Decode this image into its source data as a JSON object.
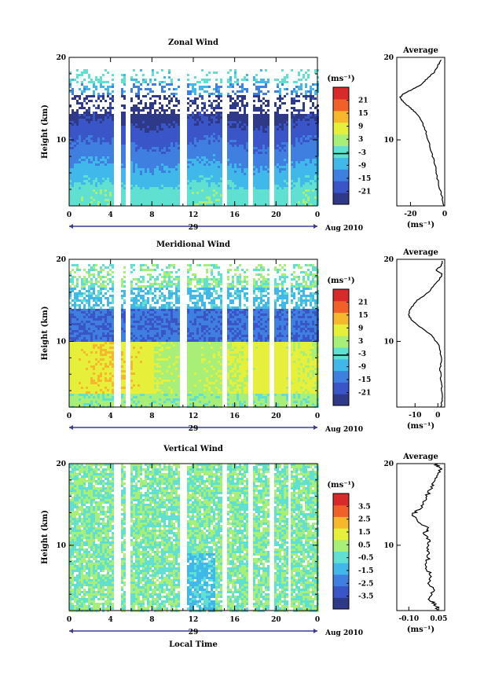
{
  "chart_data": [
    {
      "type": "heatmap",
      "title": "Zonal Wind",
      "ylabel": "Height (km)",
      "xticks": [
        "0",
        "4",
        "8",
        "12",
        "16",
        "20",
        "0"
      ],
      "date_label": "29",
      "month_label": "Aug 2010",
      "ylim": [
        2,
        20
      ],
      "yticks": [
        "10",
        "20"
      ],
      "colorbar": {
        "unit": "(ms⁻¹)",
        "ticks": [
          "21",
          "15",
          "9",
          "3",
          "-3",
          "-9",
          "-15",
          "-21"
        ],
        "contour_level": "0"
      },
      "average": {
        "title": "Average",
        "xlabel": "(ms⁻¹)",
        "xticks": [
          "-20",
          "0"
        ],
        "xlim": [
          -28,
          0
        ],
        "yticks": [
          "10",
          "20"
        ],
        "profile": [
          [
            -0.3,
            2.0
          ],
          [
            -1.5,
            3.0
          ],
          [
            -3,
            4.2
          ],
          [
            -4.5,
            5.5
          ],
          [
            -5,
            6.5
          ],
          [
            -7,
            8.0
          ],
          [
            -9,
            9.5
          ],
          [
            -11,
            11.0
          ],
          [
            -14,
            12.5
          ],
          [
            -18,
            13.5
          ],
          [
            -22,
            14.2
          ],
          [
            -25,
            14.8
          ],
          [
            -26,
            15.2
          ],
          [
            -24,
            15.6
          ],
          [
            -18,
            16.2
          ],
          [
            -13,
            16.8
          ],
          [
            -10,
            17.5
          ],
          [
            -6,
            18.2
          ],
          [
            -4,
            19.0
          ],
          [
            -2,
            19.7
          ]
        ]
      }
    },
    {
      "type": "heatmap",
      "title": "Meridional Wind",
      "ylabel": "Height (km)",
      "xticks": [
        "0",
        "4",
        "8",
        "12",
        "16",
        "20",
        "0"
      ],
      "date_label": "29",
      "month_label": "Aug 2010",
      "ylim": [
        2,
        20
      ],
      "yticks": [
        "10",
        "20"
      ],
      "colorbar": {
        "unit": "(ms⁻¹)",
        "ticks": [
          "21",
          "15",
          "9",
          "3",
          "-3",
          "-9",
          "-15",
          "-21"
        ],
        "contour_level": "0"
      },
      "average": {
        "title": "Average",
        "xlabel": "(ms⁻¹)",
        "xticks": [
          "-10",
          "0"
        ],
        "xlim": [
          -18,
          3
        ],
        "yticks": [
          "10",
          "20"
        ],
        "profile": [
          [
            1.5,
            2.0
          ],
          [
            2.0,
            3.5
          ],
          [
            1.5,
            5.0
          ],
          [
            1.0,
            6.5
          ],
          [
            1.5,
            8.0
          ],
          [
            0.5,
            9.5
          ],
          [
            -3,
            10.8
          ],
          [
            -8,
            11.8
          ],
          [
            -11,
            12.5
          ],
          [
            -13,
            13.2
          ],
          [
            -12,
            14.0
          ],
          [
            -9,
            15.0
          ],
          [
            -4,
            16.0
          ],
          [
            -2,
            16.8
          ],
          [
            0.5,
            17.5
          ],
          [
            2,
            18.2
          ],
          [
            -1,
            18.7
          ],
          [
            1.5,
            19.2
          ],
          [
            2,
            19.8
          ]
        ]
      }
    },
    {
      "type": "heatmap",
      "title": "Vertical Wind",
      "xlabel": "Local Time",
      "ylabel": "Height (km)",
      "xticks": [
        "0",
        "4",
        "8",
        "12",
        "16",
        "20",
        "0"
      ],
      "date_label": "29",
      "month_label": "Aug 2010",
      "ylim": [
        2,
        20
      ],
      "yticks": [
        "10",
        "20"
      ],
      "colorbar": {
        "unit": "(ms⁻¹)",
        "ticks": [
          "3.5",
          "2.5",
          "1.5",
          "0.5",
          "-0.5",
          "-1.5",
          "-2.5",
          "-3.5"
        ]
      },
      "average": {
        "title": "Average",
        "xlabel": "(ms⁻¹)",
        "xticks": [
          "-0.10",
          "0.05"
        ],
        "xlim": [
          -0.16,
          0.08
        ],
        "yticks": [
          "10",
          "20"
        ],
        "profile": [
          [
            0.05,
            2.0
          ],
          [
            0.03,
            2.8
          ],
          [
            0.0,
            3.5
          ],
          [
            0.02,
            4.5
          ],
          [
            0.0,
            5.5
          ],
          [
            0.01,
            6.5
          ],
          [
            -0.02,
            7.5
          ],
          [
            0.0,
            8.5
          ],
          [
            -0.01,
            9.5
          ],
          [
            0.0,
            10.5
          ],
          [
            -0.02,
            11.5
          ],
          [
            0.0,
            12.0
          ],
          [
            -0.06,
            13.0
          ],
          [
            -0.08,
            13.8
          ],
          [
            -0.04,
            14.5
          ],
          [
            -0.02,
            15.5
          ],
          [
            0.0,
            16.5
          ],
          [
            0.02,
            17.5
          ],
          [
            0.04,
            18.5
          ],
          [
            0.06,
            19.5
          ],
          [
            0.03,
            20.0
          ]
        ]
      }
    }
  ],
  "colors": {
    "scale": [
      "#2e3a87",
      "#3a55c8",
      "#3f7fe0",
      "#40b8ea",
      "#5fe0d0",
      "#a8ef78",
      "#e6ef3a",
      "#f7b72c",
      "#f2602a",
      "#d82a2a"
    ],
    "blank": "#ffffff",
    "axis": "#000000"
  }
}
